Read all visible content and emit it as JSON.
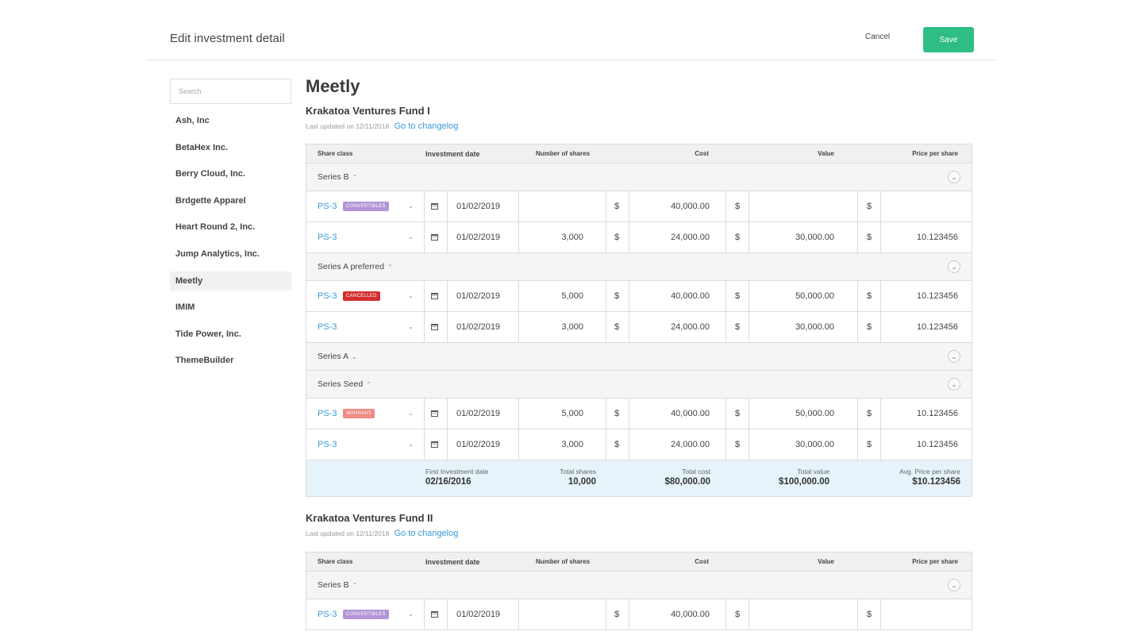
{
  "header": {
    "title": "Edit investment detail",
    "cancel_label": "Cancel",
    "save_label": "Save",
    "save_color": "#2ebd85"
  },
  "sidebar": {
    "search_placeholder": "Search",
    "items": [
      {
        "label": "Ash, Inc"
      },
      {
        "label": "BetaHex Inc."
      },
      {
        "label": "Berry Cloud, Inc."
      },
      {
        "label": "Brdgette Apparel"
      },
      {
        "label": "Heart Round 2, Inc."
      },
      {
        "label": "Jump Analytics, Inc."
      },
      {
        "label": "Meetly",
        "active": true
      },
      {
        "label": "IMIM"
      },
      {
        "label": "Tide Power, Inc."
      },
      {
        "label": "ThemeBuilder"
      }
    ]
  },
  "main": {
    "company_name": "Meetly",
    "columns": {
      "share_class": "Share class",
      "investment_date": "Investment date",
      "number_of_shares": "Number of shares",
      "cost": "Cost",
      "value": "Value",
      "price_per_share": "Price per share"
    },
    "currency_symbol": "$",
    "badge_colors": {
      "CONVERTIBLES": "#b295d6",
      "CANCELLED": "#d32f2f",
      "WARRANT": "#f08a82"
    },
    "funds": [
      {
        "title": "Krakatoa Ventures Fund I",
        "last_updated": "Last updated on 12/11/2018",
        "changelog_link": "Go to changelog",
        "groups": [
          {
            "name": "Series B",
            "caret": "^",
            "rows": [
              {
                "share": "PS-3",
                "badge": "CONVERTIBLES",
                "date": "01/02/2019",
                "shares": "",
                "cost": "40,000.00",
                "value": "",
                "price": ""
              },
              {
                "share": "PS-3",
                "badge": "",
                "date": "01/02/2019",
                "shares": "3,000",
                "cost": "24,000.00",
                "value": "30,000.00",
                "price": "10.123456"
              }
            ]
          },
          {
            "name": "Series A preferred",
            "caret": "^",
            "rows": [
              {
                "share": "PS-3",
                "badge": "CANCELLED",
                "date": "01/02/2019",
                "shares": "5,000",
                "cost": "40,000.00",
                "value": "50,000.00",
                "price": "10.123456"
              },
              {
                "share": "PS-3",
                "badge": "",
                "date": "01/02/2019",
                "shares": "3,000",
                "cost": "24,000.00",
                "value": "30,000.00",
                "price": "10.123456"
              }
            ]
          },
          {
            "name": "Series A",
            "caret": "v",
            "rows": []
          },
          {
            "name": "Series Seed",
            "caret": "^",
            "rows": [
              {
                "share": "PS-3",
                "badge": "WARRANT",
                "date": "01/02/2019",
                "shares": "5,000",
                "cost": "40,000.00",
                "value": "50,000.00",
                "price": "10.123456"
              },
              {
                "share": "PS-3",
                "badge": "",
                "date": "01/02/2019",
                "shares": "3,000",
                "cost": "24,000.00",
                "value": "30,000.00",
                "price": "10.123456"
              }
            ]
          }
        ],
        "summary": {
          "first_date_label": "First Investment date",
          "first_date": "02/16/2016",
          "total_shares_label": "Total shares",
          "total_shares": "10,000",
          "total_cost_label": "Total cost",
          "total_cost": "$80,000.00",
          "total_value_label": "Total value",
          "total_value": "$100,000.00",
          "avg_price_label": "Avg. Price per share",
          "avg_price": "$10.123456"
        }
      },
      {
        "title": "Krakatoa Ventures Fund II",
        "last_updated": "Last updated on 12/11/2018",
        "changelog_link": "Go to changelog",
        "groups": [
          {
            "name": "Series B",
            "caret": "^",
            "rows": [
              {
                "share": "PS-3",
                "badge": "CONVERTIBLES",
                "date": "01/02/2019",
                "shares": "",
                "cost": "40,000.00",
                "value": "",
                "price": ""
              }
            ]
          }
        ]
      }
    ]
  }
}
